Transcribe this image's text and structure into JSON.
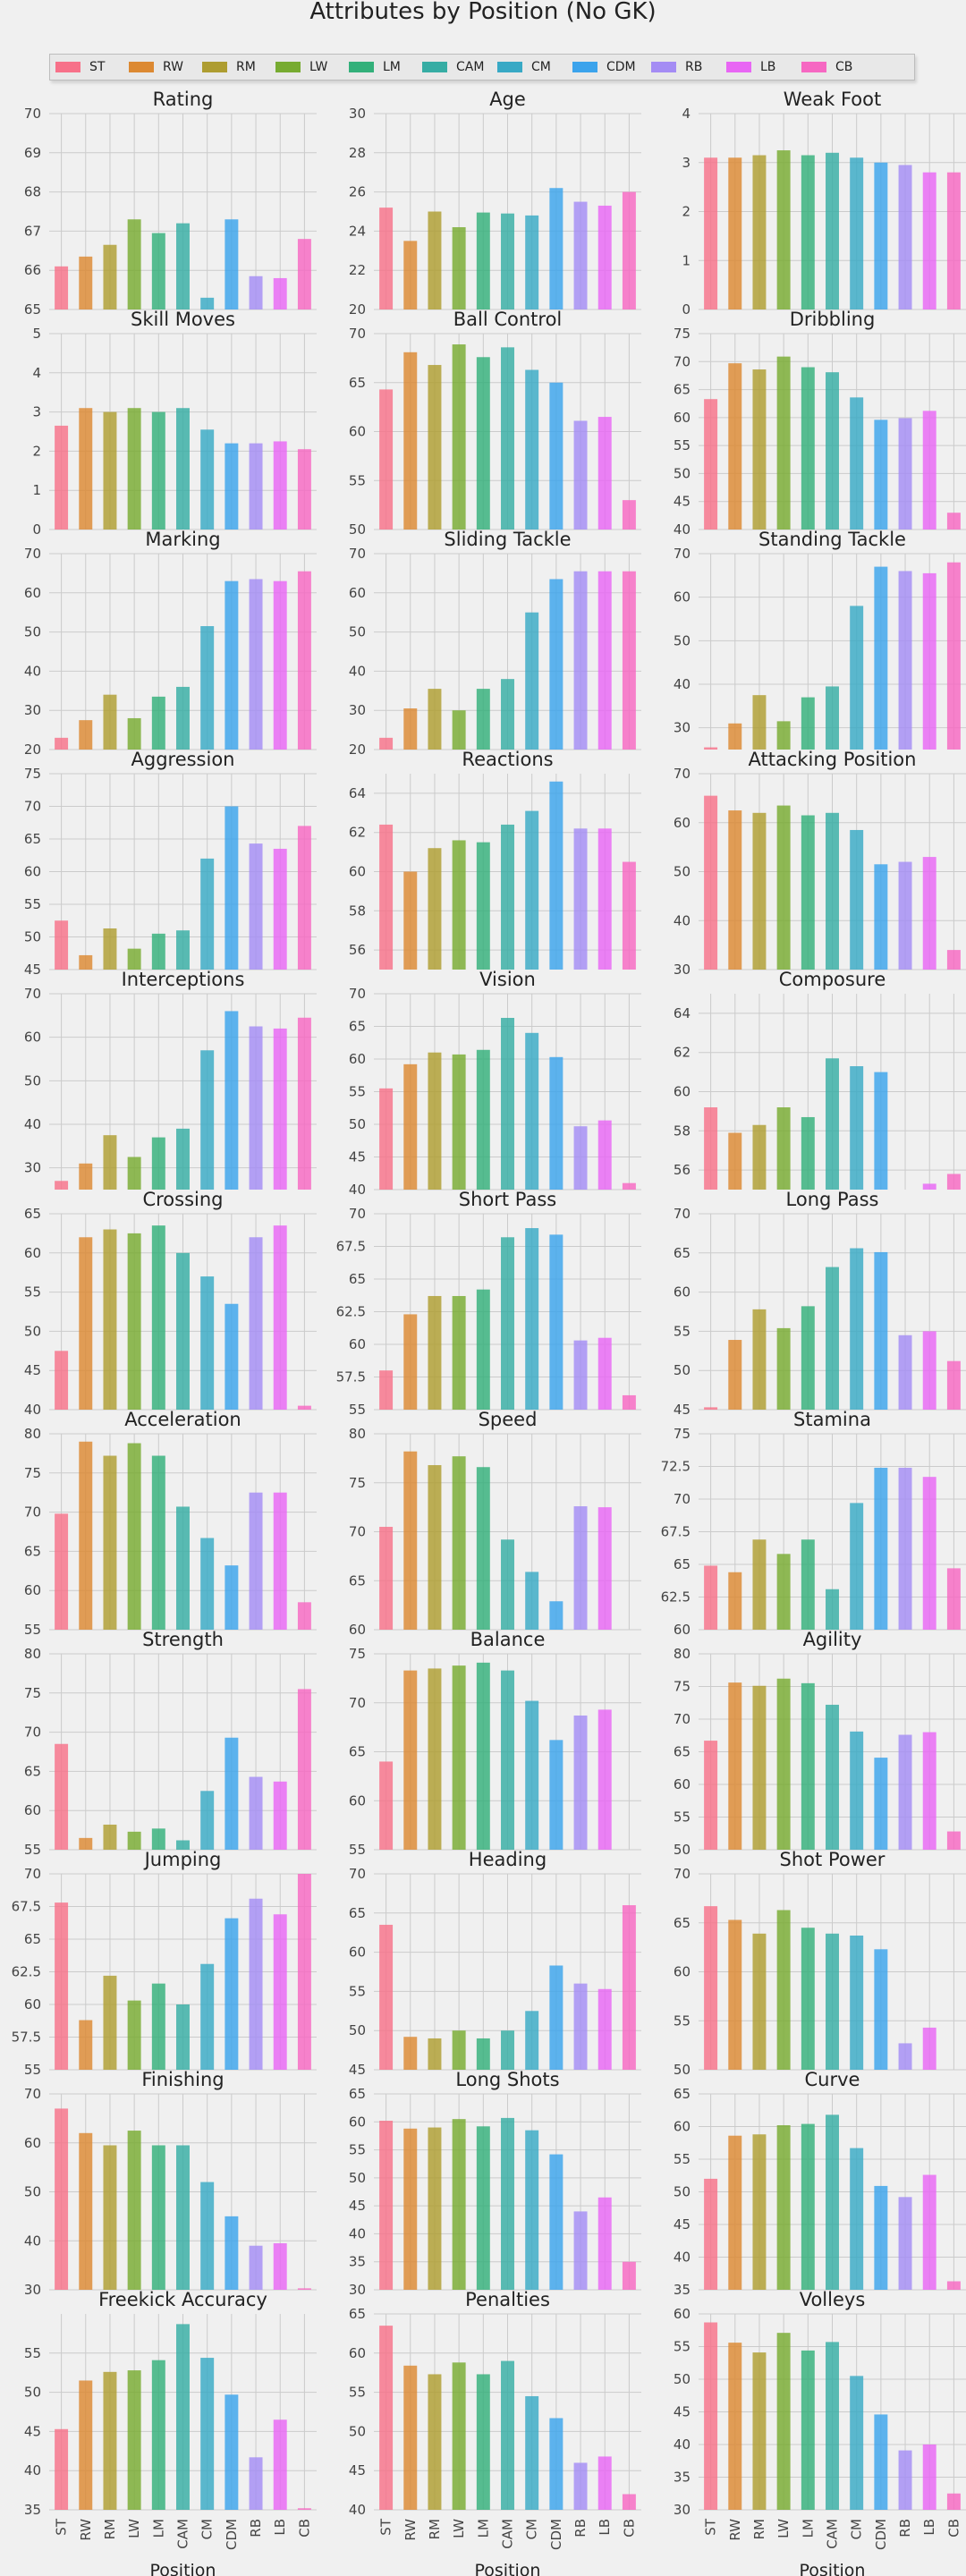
{
  "title": "Attributes by Position (No GK)",
  "positions": [
    "ST",
    "RW",
    "RM",
    "LW",
    "LM",
    "CAM",
    "CM",
    "CDM",
    "RB",
    "LB",
    "CB"
  ],
  "colors": [
    "#f77189",
    "#dc8932",
    "#ae9d31",
    "#77ab31",
    "#33b07a",
    "#36ada4",
    "#38a9c5",
    "#3ba3ec",
    "#a48cf4",
    "#e866f4",
    "#f668c2"
  ],
  "xlabel": "Position",
  "chart_data": [
    {
      "type": "bar",
      "title": "Rating",
      "ylim": [
        65,
        70
      ],
      "yticks": [
        65,
        66,
        67,
        68,
        69,
        70
      ],
      "values": [
        66.1,
        66.35,
        66.65,
        67.3,
        66.95,
        67.2,
        65.3,
        67.3,
        65.85,
        65.8,
        66.8
      ]
    },
    {
      "type": "bar",
      "title": "Age",
      "ylim": [
        20,
        30
      ],
      "yticks": [
        20,
        22,
        24,
        26,
        28,
        30
      ],
      "values": [
        25.2,
        23.5,
        25.0,
        24.2,
        24.95,
        24.9,
        24.8,
        26.2,
        25.5,
        25.3,
        26.0
      ]
    },
    {
      "type": "bar",
      "title": "Weak Foot",
      "ylim": [
        0,
        4
      ],
      "yticks": [
        0,
        1,
        2,
        3,
        4
      ],
      "values": [
        3.1,
        3.1,
        3.15,
        3.25,
        3.15,
        3.2,
        3.1,
        3.0,
        2.95,
        2.8,
        2.8
      ]
    },
    {
      "type": "bar",
      "title": "Skill Moves",
      "ylim": [
        0,
        5
      ],
      "yticks": [
        0,
        1,
        2,
        3,
        4,
        5
      ],
      "values": [
        2.65,
        3.1,
        3.0,
        3.1,
        3.0,
        3.1,
        2.55,
        2.2,
        2.2,
        2.25,
        2.05
      ]
    },
    {
      "type": "bar",
      "title": "Ball Control",
      "ylim": [
        50,
        70
      ],
      "yticks": [
        50,
        55,
        60,
        65,
        70
      ],
      "values": [
        64.3,
        68.1,
        66.8,
        68.9,
        67.6,
        68.6,
        66.3,
        65.0,
        61.1,
        61.5,
        53.0
      ]
    },
    {
      "type": "bar",
      "title": "Dribbling",
      "ylim": [
        40,
        75
      ],
      "yticks": [
        40,
        45,
        50,
        55,
        60,
        65,
        70,
        75
      ],
      "values": [
        63.3,
        69.7,
        68.6,
        70.9,
        69.0,
        68.1,
        63.6,
        59.6,
        59.9,
        61.2,
        43.0
      ]
    },
    {
      "type": "bar",
      "title": "Marking",
      "ylim": [
        20,
        70
      ],
      "yticks": [
        20,
        30,
        40,
        50,
        60,
        70
      ],
      "values": [
        23.0,
        27.5,
        34.0,
        28.0,
        33.5,
        36.0,
        51.5,
        63.0,
        63.5,
        63.0,
        65.5
      ]
    },
    {
      "type": "bar",
      "title": "Sliding Tackle",
      "ylim": [
        20,
        70
      ],
      "yticks": [
        20,
        30,
        40,
        50,
        60,
        70
      ],
      "values": [
        23.0,
        30.5,
        35.5,
        30.0,
        35.5,
        38.0,
        55.0,
        63.5,
        65.5,
        65.5,
        65.5
      ]
    },
    {
      "type": "bar",
      "title": "Standing Tackle",
      "ylim": [
        25,
        70
      ],
      "yticks": [
        30,
        40,
        50,
        60,
        70
      ],
      "values": [
        25.5,
        31.0,
        37.5,
        31.5,
        37.0,
        39.5,
        58.0,
        67.0,
        66.0,
        65.5,
        68.0
      ]
    },
    {
      "type": "bar",
      "title": "Aggression",
      "ylim": [
        45,
        75
      ],
      "yticks": [
        45,
        50,
        55,
        60,
        65,
        70,
        75
      ],
      "values": [
        52.5,
        47.2,
        51.3,
        48.2,
        50.5,
        51.0,
        62.0,
        70.0,
        64.3,
        63.5,
        67.0
      ]
    },
    {
      "type": "bar",
      "title": "Reactions",
      "ylim": [
        55,
        65
      ],
      "yticks": [
        56,
        58,
        60,
        62,
        64
      ],
      "values": [
        62.4,
        60.0,
        61.2,
        61.6,
        61.5,
        62.4,
        63.1,
        64.6,
        62.2,
        62.2,
        60.5
      ]
    },
    {
      "type": "bar",
      "title": "Attacking Position",
      "ylim": [
        30,
        70
      ],
      "yticks": [
        30,
        40,
        50,
        60,
        70
      ],
      "values": [
        65.5,
        62.5,
        62.0,
        63.5,
        61.5,
        62.0,
        58.5,
        51.5,
        52.0,
        53.0,
        34.0
      ]
    },
    {
      "type": "bar",
      "title": "Interceptions",
      "ylim": [
        25,
        70
      ],
      "yticks": [
        30,
        40,
        50,
        60,
        70
      ],
      "values": [
        27.0,
        31.0,
        37.5,
        32.5,
        37.0,
        39.0,
        57.0,
        66.0,
        62.5,
        62.0,
        64.5
      ]
    },
    {
      "type": "bar",
      "title": "Vision",
      "ylim": [
        40,
        70
      ],
      "yticks": [
        40,
        45,
        50,
        55,
        60,
        65,
        70
      ],
      "values": [
        55.5,
        59.2,
        61.0,
        60.7,
        61.4,
        66.3,
        64.0,
        60.3,
        49.7,
        50.6,
        41.0
      ]
    },
    {
      "type": "bar",
      "title": "Composure",
      "ylim": [
        55,
        65
      ],
      "yticks": [
        56,
        58,
        60,
        62,
        64
      ],
      "values": [
        59.2,
        57.9,
        58.3,
        59.2,
        58.7,
        61.7,
        61.3,
        61.0,
        55,
        55.3,
        55.8
      ]
    },
    {
      "type": "bar",
      "title": "Crossing",
      "ylim": [
        40,
        65
      ],
      "yticks": [
        40,
        45,
        50,
        55,
        60,
        65
      ],
      "values": [
        47.5,
        62.0,
        63.0,
        62.5,
        63.5,
        60.0,
        57.0,
        53.5,
        62.0,
        63.5,
        40.5
      ]
    },
    {
      "type": "bar",
      "title": "Short Pass",
      "ylim": [
        55,
        70
      ],
      "yticks": [
        55.0,
        57.5,
        60.0,
        62.5,
        65.0,
        67.5,
        70.0
      ],
      "values": [
        58.0,
        62.3,
        63.7,
        63.7,
        64.2,
        68.2,
        68.9,
        68.4,
        60.3,
        60.5,
        56.1
      ]
    },
    {
      "type": "bar",
      "title": "Long Pass",
      "ylim": [
        45,
        70
      ],
      "yticks": [
        45,
        50,
        55,
        60,
        65,
        70
      ],
      "values": [
        45.3,
        53.9,
        57.8,
        55.4,
        58.2,
        63.2,
        65.6,
        65.1,
        54.5,
        55.0,
        51.2
      ]
    },
    {
      "type": "bar",
      "title": "Acceleration",
      "ylim": [
        55,
        80
      ],
      "yticks": [
        55,
        60,
        65,
        70,
        75,
        80
      ],
      "values": [
        69.8,
        79.0,
        77.2,
        78.8,
        77.2,
        70.7,
        66.7,
        63.2,
        72.5,
        72.5,
        58.5
      ]
    },
    {
      "type": "bar",
      "title": "Speed",
      "ylim": [
        60,
        80
      ],
      "yticks": [
        60,
        65,
        70,
        75,
        80
      ],
      "values": [
        70.5,
        78.2,
        76.8,
        77.7,
        76.6,
        69.2,
        65.9,
        62.9,
        72.6,
        72.5,
        60
      ]
    },
    {
      "type": "bar",
      "title": "Stamina",
      "ylim": [
        60,
        75
      ],
      "yticks": [
        60.0,
        62.5,
        65.0,
        67.5,
        70.0,
        72.5,
        75.0
      ],
      "values": [
        64.9,
        64.4,
        66.9,
        65.8,
        66.9,
        63.1,
        69.7,
        72.4,
        72.4,
        71.7,
        64.7
      ]
    },
    {
      "type": "bar",
      "title": "Strength",
      "ylim": [
        55,
        80
      ],
      "yticks": [
        55,
        60,
        65,
        70,
        75,
        80
      ],
      "values": [
        68.5,
        56.5,
        58.2,
        57.3,
        57.7,
        56.2,
        62.5,
        69.3,
        64.3,
        63.7,
        75.5
      ]
    },
    {
      "type": "bar",
      "title": "Balance",
      "ylim": [
        55,
        75
      ],
      "yticks": [
        55,
        60,
        65,
        70,
        75
      ],
      "values": [
        64.0,
        73.3,
        73.5,
        73.8,
        74.1,
        73.3,
        70.2,
        66.2,
        68.7,
        69.3,
        55
      ]
    },
    {
      "type": "bar",
      "title": "Agility",
      "ylim": [
        50,
        80
      ],
      "yticks": [
        50,
        55,
        60,
        65,
        70,
        75,
        80
      ],
      "values": [
        66.7,
        75.6,
        75.1,
        76.2,
        75.5,
        72.2,
        68.1,
        64.1,
        67.6,
        68.0,
        52.8
      ]
    },
    {
      "type": "bar",
      "title": "Jumping",
      "ylim": [
        55,
        70
      ],
      "yticks": [
        55.0,
        57.5,
        60.0,
        62.5,
        65.0,
        67.5,
        70.0
      ],
      "values": [
        67.8,
        58.8,
        62.2,
        60.3,
        61.6,
        60.0,
        63.1,
        66.6,
        68.1,
        66.9,
        70.0
      ]
    },
    {
      "type": "bar",
      "title": "Heading",
      "ylim": [
        45,
        70
      ],
      "yticks": [
        45,
        50,
        55,
        60,
        65,
        70
      ],
      "values": [
        63.5,
        49.2,
        49.0,
        50.0,
        49.0,
        50.0,
        52.5,
        58.3,
        56.0,
        55.3,
        66.0
      ]
    },
    {
      "type": "bar",
      "title": "Shot Power",
      "ylim": [
        50,
        70
      ],
      "yticks": [
        50,
        55,
        60,
        65,
        70
      ],
      "values": [
        66.7,
        65.3,
        63.9,
        66.3,
        64.5,
        63.9,
        63.7,
        62.3,
        52.7,
        54.3,
        50
      ]
    },
    {
      "type": "bar",
      "title": "Finishing",
      "ylim": [
        30,
        70
      ],
      "yticks": [
        30,
        40,
        50,
        60,
        70
      ],
      "values": [
        67.0,
        62.0,
        59.5,
        62.5,
        59.5,
        59.5,
        52.0,
        45.0,
        39.0,
        39.5,
        30.3
      ]
    },
    {
      "type": "bar",
      "title": "Long Shots",
      "ylim": [
        30,
        65
      ],
      "yticks": [
        30,
        35,
        40,
        45,
        50,
        55,
        60,
        65
      ],
      "values": [
        60.2,
        58.8,
        59.0,
        60.5,
        59.2,
        60.7,
        58.5,
        54.2,
        44.0,
        46.5,
        35.0
      ]
    },
    {
      "type": "bar",
      "title": "Curve",
      "ylim": [
        35,
        65
      ],
      "yticks": [
        35,
        40,
        45,
        50,
        55,
        60,
        65
      ],
      "values": [
        52.0,
        58.6,
        58.8,
        60.2,
        60.4,
        61.8,
        56.7,
        50.9,
        49.2,
        52.6,
        36.3
      ]
    },
    {
      "type": "bar",
      "title": "Freekick Accuracy",
      "ylim": [
        35,
        60
      ],
      "yticks": [
        35,
        40,
        45,
        50,
        55
      ],
      "values": [
        45.3,
        51.5,
        52.6,
        52.8,
        54.1,
        58.7,
        54.4,
        49.7,
        41.7,
        46.5,
        35.2
      ]
    },
    {
      "type": "bar",
      "title": "Penalties",
      "ylim": [
        40,
        65
      ],
      "yticks": [
        40,
        45,
        50,
        55,
        60,
        65
      ],
      "values": [
        63.5,
        58.4,
        57.3,
        58.8,
        57.3,
        59.0,
        54.5,
        51.7,
        46.0,
        46.8,
        42.0
      ]
    },
    {
      "type": "bar",
      "title": "Volleys",
      "ylim": [
        30,
        60
      ],
      "yticks": [
        30,
        35,
        40,
        45,
        50,
        55,
        60
      ],
      "values": [
        58.7,
        55.6,
        54.1,
        57.1,
        54.4,
        55.7,
        50.5,
        44.6,
        39.1,
        40.0,
        32.5
      ]
    }
  ]
}
